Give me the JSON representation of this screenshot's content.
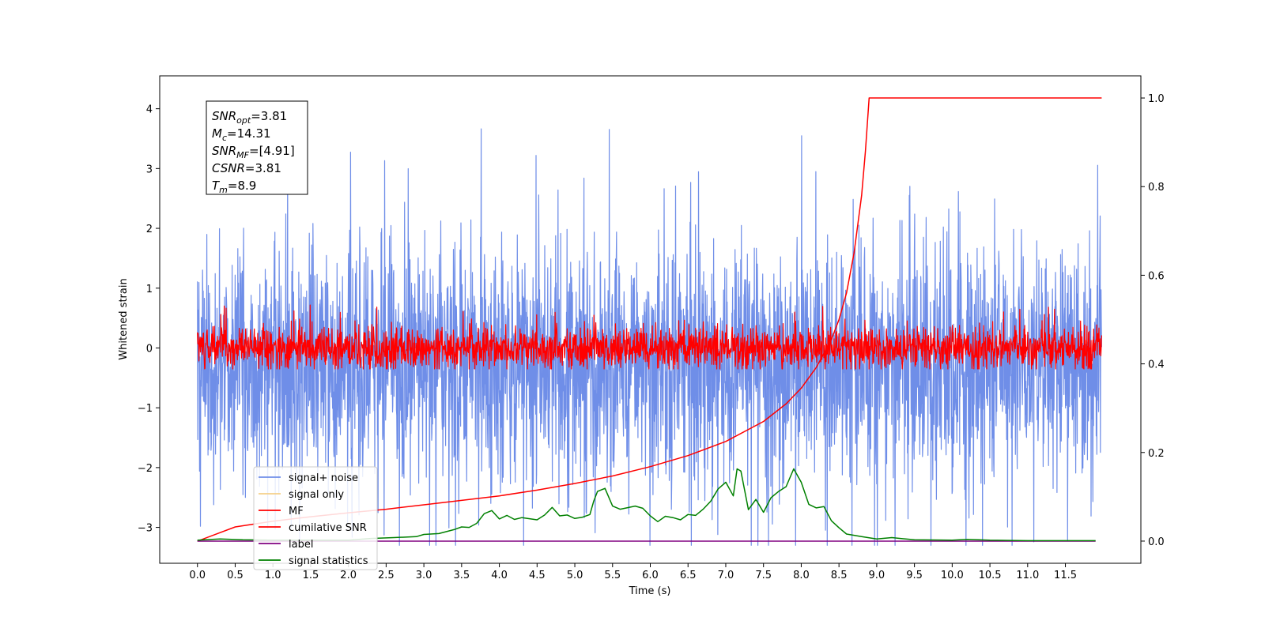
{
  "chart_data": {
    "type": "line",
    "xlabel": "Time (s)",
    "ylabel": "Whitened strain",
    "xlim": [
      -0.5,
      12.5
    ],
    "ylim": [
      -3.6,
      4.55
    ],
    "y2lim": [
      -0.05,
      1.05
    ],
    "x_ticks": [
      0.0,
      0.5,
      1.0,
      1.5,
      2.0,
      2.5,
      3.0,
      3.5,
      4.0,
      4.5,
      5.0,
      5.5,
      6.0,
      6.5,
      7.0,
      7.5,
      8.0,
      8.5,
      9.0,
      9.5,
      10.0,
      10.5,
      11.0,
      11.5
    ],
    "x_tick_labels": [
      "0.0",
      "0.5",
      "1.0",
      "1.5",
      "2.0",
      "2.5",
      "3.0",
      "3.5",
      "4.0",
      "4.5",
      "5.0",
      "5.5",
      "6.0",
      "6.5",
      "7.0",
      "7.5",
      "8.0",
      "8.5",
      "9.0",
      "9.5",
      "10.0",
      "10.5",
      "11.0",
      "11.5"
    ],
    "y_ticks": [
      -3,
      -2,
      -1,
      0,
      1,
      2,
      3,
      4
    ],
    "y_tick_labels": [
      "−3",
      "−2",
      "−1",
      "0",
      "1",
      "2",
      "3",
      "4"
    ],
    "y2_ticks": [
      0.0,
      0.2,
      0.4,
      0.6,
      0.8,
      1.0
    ],
    "y2_tick_labels": [
      "0.0",
      "0.2",
      "0.4",
      "0.6",
      "0.8",
      "1.0"
    ],
    "grid": false,
    "legend_position": "bottom-left",
    "legend": [
      {
        "label": "signal+ noise",
        "color": "#6f8ee8"
      },
      {
        "label": "signal only",
        "color": "#f5d08a"
      },
      {
        "label": "MF",
        "color": "#ff0000"
      },
      {
        "label": "cumilative SNR",
        "color": "#ff0000"
      },
      {
        "label": "label",
        "color": "#800080"
      },
      {
        "label": "signal statistics",
        "color": "#008000"
      }
    ],
    "stats": [
      {
        "var": "SNR",
        "sub": "opt",
        "value": "=3.81"
      },
      {
        "var": "M",
        "sub": "c",
        "value": "=14.31"
      },
      {
        "var": "SNR",
        "sub": "MF",
        "value": "=[4.91]"
      },
      {
        "var": "CSNR",
        "sub": "",
        "value": "=3.81"
      },
      {
        "var": "T",
        "sub": "m",
        "value": "=8.9"
      }
    ],
    "series": [
      {
        "name": "signal+ noise",
        "axis": "left",
        "color": "#6f8ee8",
        "t_range": [
          0.0,
          11.98
        ],
        "level": -0.3,
        "spread": 1.0,
        "max": 4.18,
        "min": -3.3
      },
      {
        "name": "MF",
        "axis": "left",
        "color": "#ff0000",
        "t_range": [
          0.0,
          11.98
        ],
        "level": 0.0,
        "spread": 0.18,
        "max": 0.97,
        "min": -0.35
      },
      {
        "name": "cumilative SNR",
        "axis": "right",
        "color": "#ff0000",
        "x": [
          0.0,
          0.5,
          1.0,
          1.5,
          2.0,
          2.5,
          3.0,
          3.5,
          4.0,
          4.5,
          5.0,
          5.5,
          6.0,
          6.5,
          7.0,
          7.5,
          7.8,
          8.0,
          8.2,
          8.4,
          8.5,
          8.6,
          8.7,
          8.8,
          8.85,
          8.9,
          9.0,
          10.0,
          11.0,
          11.98
        ],
        "y": [
          0.0,
          0.032,
          0.045,
          0.055,
          0.064,
          0.072,
          0.082,
          0.092,
          0.102,
          0.115,
          0.13,
          0.147,
          0.168,
          0.193,
          0.225,
          0.27,
          0.31,
          0.345,
          0.392,
          0.455,
          0.5,
          0.56,
          0.65,
          0.78,
          0.88,
          1.0,
          1.0,
          1.0,
          1.0,
          1.0
        ]
      },
      {
        "name": "label",
        "axis": "right",
        "color": "#800080",
        "x": [
          0.0,
          11.9
        ],
        "y": [
          0.0,
          0.0
        ]
      },
      {
        "name": "signal statistics",
        "axis": "right",
        "color": "#008000",
        "x": [
          0.0,
          0.3,
          0.6,
          1.0,
          1.5,
          2.0,
          2.3,
          2.6,
          2.9,
          3.0,
          3.2,
          3.4,
          3.5,
          3.6,
          3.7,
          3.8,
          3.9,
          4.0,
          4.1,
          4.2,
          4.3,
          4.5,
          4.6,
          4.7,
          4.8,
          4.9,
          5.0,
          5.1,
          5.2,
          5.25,
          5.3,
          5.4,
          5.5,
          5.6,
          5.8,
          5.9,
          6.0,
          6.1,
          6.2,
          6.3,
          6.4,
          6.5,
          6.6,
          6.7,
          6.8,
          6.9,
          7.0,
          7.1,
          7.15,
          7.2,
          7.3,
          7.4,
          7.5,
          7.6,
          7.7,
          7.8,
          7.9,
          8.0,
          8.1,
          8.2,
          8.3,
          8.4,
          8.5,
          8.6,
          8.8,
          9.0,
          9.2,
          9.5,
          10.0,
          10.2,
          10.5,
          11.0,
          11.5,
          11.9
        ],
        "y": [
          0.002,
          0.005,
          0.003,
          0.002,
          0.002,
          0.002,
          0.006,
          0.008,
          0.01,
          0.015,
          0.017,
          0.026,
          0.032,
          0.031,
          0.04,
          0.062,
          0.069,
          0.05,
          0.058,
          0.049,
          0.053,
          0.048,
          0.059,
          0.076,
          0.057,
          0.059,
          0.051,
          0.054,
          0.06,
          0.09,
          0.112,
          0.119,
          0.079,
          0.072,
          0.079,
          0.074,
          0.057,
          0.044,
          0.056,
          0.053,
          0.048,
          0.06,
          0.058,
          0.072,
          0.09,
          0.118,
          0.133,
          0.102,
          0.163,
          0.158,
          0.071,
          0.094,
          0.065,
          0.098,
          0.112,
          0.123,
          0.163,
          0.133,
          0.083,
          0.075,
          0.078,
          0.046,
          0.03,
          0.016,
          0.01,
          0.005,
          0.008,
          0.003,
          0.002,
          0.004,
          0.002,
          0.001,
          0.001,
          0.001
        ]
      }
    ]
  }
}
